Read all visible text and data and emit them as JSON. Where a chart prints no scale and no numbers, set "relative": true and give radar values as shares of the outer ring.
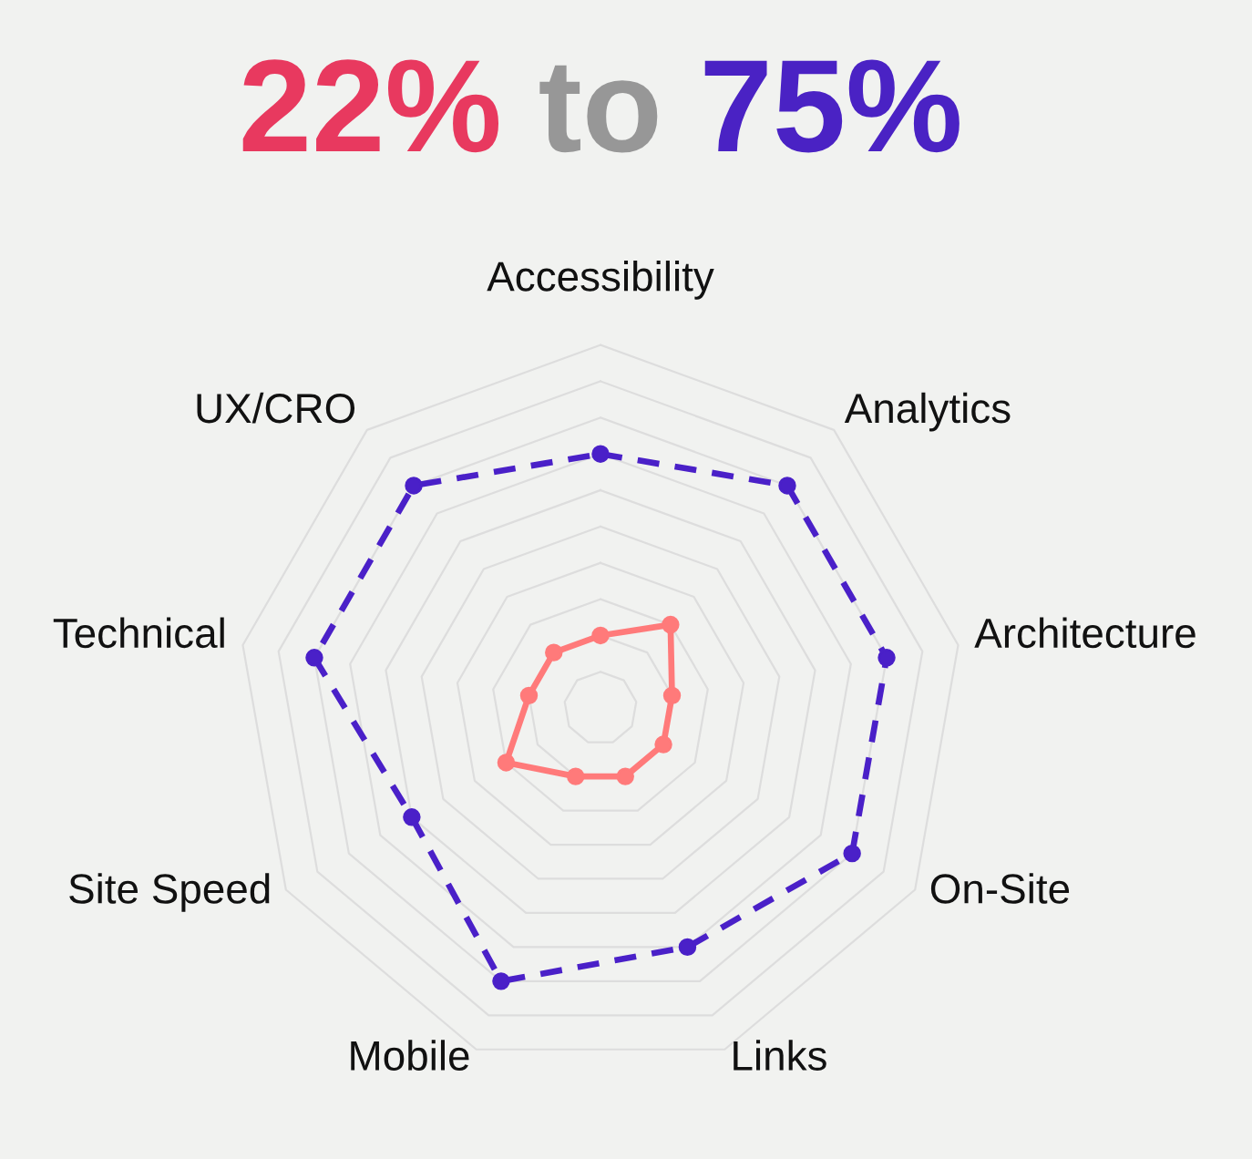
{
  "chart_data": {
    "type": "radar",
    "title": "22% to 75%",
    "categories": [
      "Accessibility",
      "Analytics",
      "Architecture",
      "On-Site",
      "Links",
      "Mobile",
      "Site Speed",
      "Technical",
      "UX/CRO"
    ],
    "relative": true,
    "grid": true,
    "marker": "circle",
    "series": [
      {
        "color": "#ff7a7a",
        "line_style": "solid",
        "values": [
          0.2,
          0.3,
          0.2,
          0.2,
          0.2,
          0.2,
          0.3,
          0.2,
          0.2
        ]
      },
      {
        "color": "#4a20c8",
        "line_style": "dashed",
        "values": [
          0.7,
          0.8,
          0.8,
          0.8,
          0.7,
          0.8,
          0.6,
          0.8,
          0.8
        ]
      }
    ]
  }
}
